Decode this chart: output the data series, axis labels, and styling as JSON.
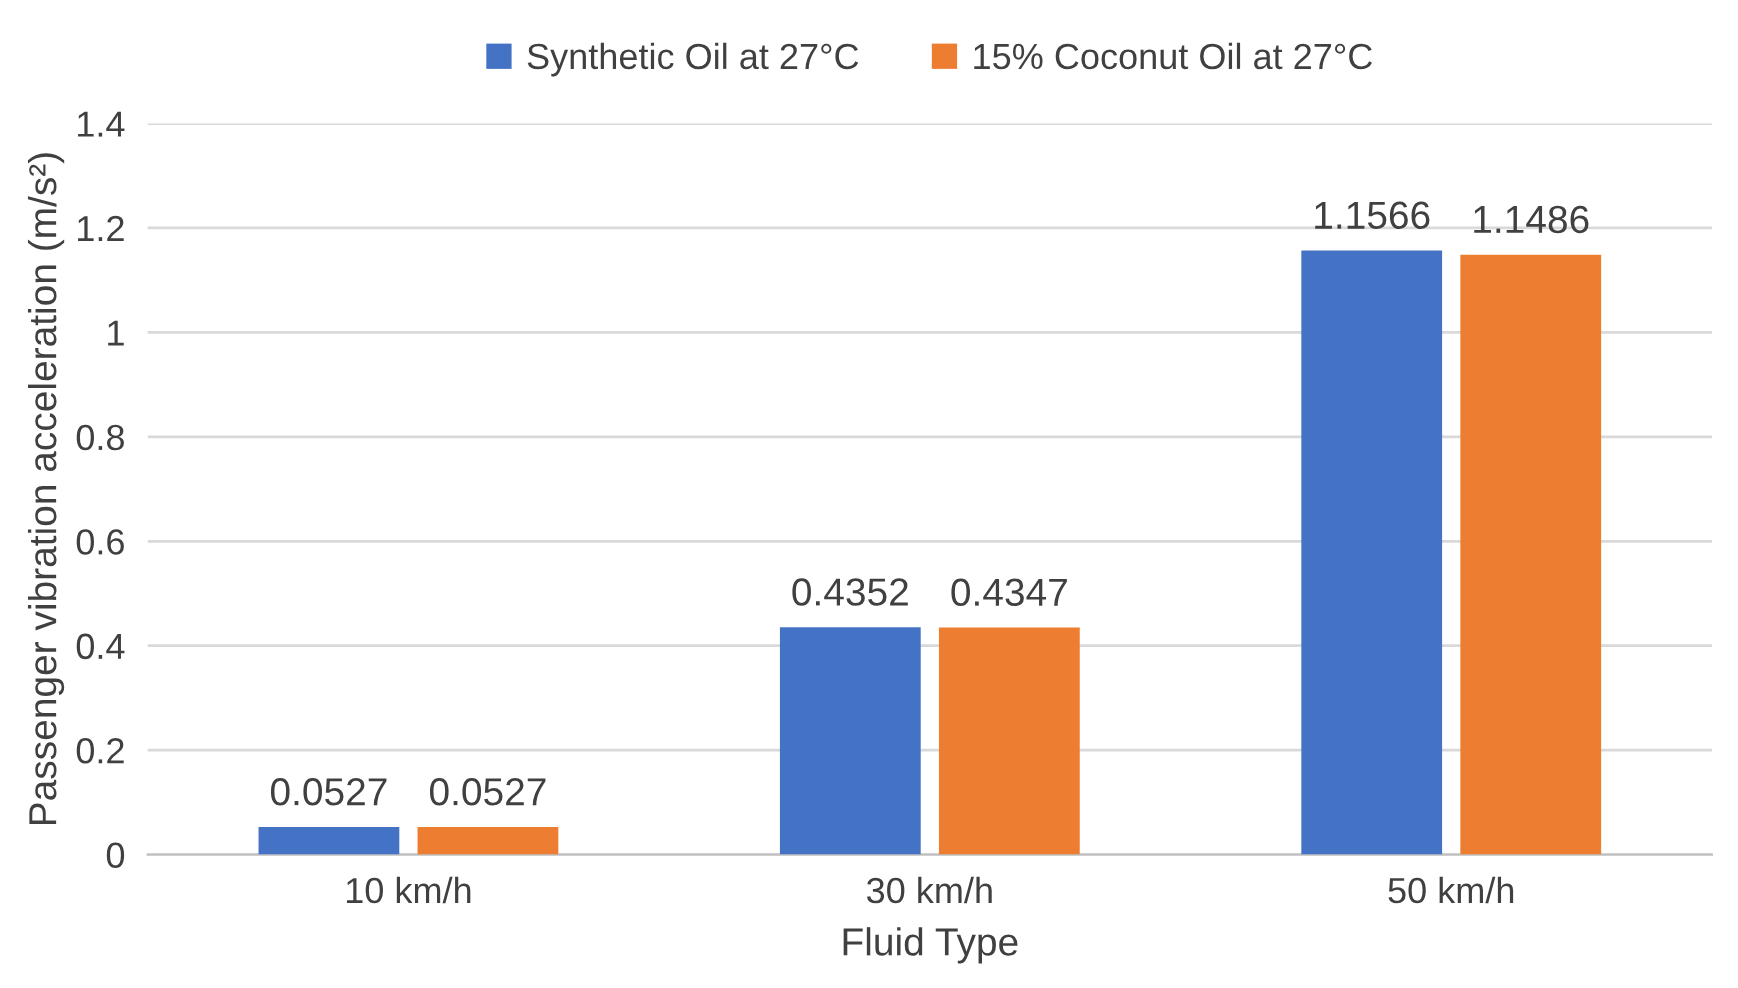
{
  "chart_data": {
    "type": "bar",
    "xlabel": "Fluid Type",
    "ylabel": "Passenger vibration acceleration (m/s²)",
    "categories": [
      "10 km/h",
      "30 km/h",
      "50 km/h"
    ],
    "series": [
      {
        "name": "Synthetic Oil at 27°C",
        "color": "#4472c4",
        "values": [
          0.0527,
          0.4352,
          1.1566
        ]
      },
      {
        "name": "15% Coconut Oil at 27°C",
        "color": "#ed7d31",
        "values": [
          0.0527,
          0.4347,
          1.1486
        ]
      }
    ],
    "ylim": [
      0,
      1.4
    ],
    "yticks": [
      0,
      0.2,
      0.4,
      0.6,
      0.8,
      1,
      1.2,
      1.4
    ],
    "grid": "y",
    "legend": "top",
    "data_labels": true
  }
}
